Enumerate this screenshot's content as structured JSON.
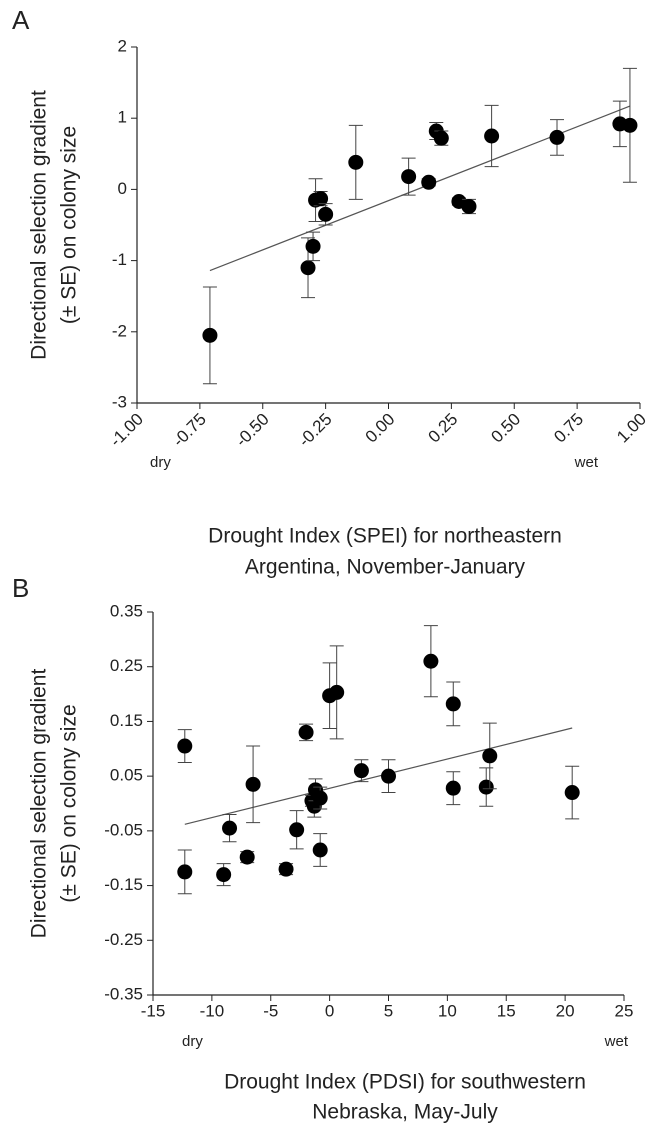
{
  "chart_data": [
    {
      "type": "scatter",
      "panel": "A",
      "ylabel": [
        "Directional selection gradient",
        "(± SE) on colony size"
      ],
      "xlabel": [
        "Drought Index (SPEI) for northeastern",
        "Argentina, November-January"
      ],
      "annotations": [
        "dry",
        "wet"
      ],
      "color": "#000000",
      "x": [
        -0.71,
        -0.32,
        -0.3,
        -0.29,
        -0.27,
        -0.25,
        -0.13,
        0.08,
        0.16,
        0.19,
        0.21,
        0.28,
        0.32,
        0.41,
        0.67,
        0.92,
        0.96
      ],
      "values": [
        -2.05,
        -1.1,
        -0.8,
        -0.15,
        -0.13,
        -0.35,
        0.38,
        0.18,
        0.1,
        0.82,
        0.72,
        -0.17,
        -0.24,
        0.75,
        0.73,
        0.92,
        0.9
      ],
      "errors": [
        0.68,
        0.42,
        0.2,
        0.3,
        0.1,
        0.15,
        0.52,
        0.26,
        0.05,
        0.12,
        0.1,
        0.05,
        0.1,
        0.43,
        0.25,
        0.32,
        0.8
      ],
      "trendline": {
        "x": [
          -0.71,
          0.96
        ],
        "y": [
          -1.14,
          1.17
        ]
      },
      "xlim": [
        -1,
        1
      ],
      "xticks": [
        {
          "value": -1,
          "label": "-1.00"
        },
        {
          "value": -0.75,
          "label": "-0.75"
        },
        {
          "value": -0.5,
          "label": "-0.50"
        },
        {
          "value": -0.25,
          "label": "-0.25"
        },
        {
          "value": 0,
          "label": "0.00"
        },
        {
          "value": 0.25,
          "label": "0.25"
        },
        {
          "value": 0.5,
          "label": "0.50"
        },
        {
          "value": 0.75,
          "label": "0.75"
        },
        {
          "value": 1,
          "label": "1.00"
        }
      ],
      "ylim": [
        -3,
        2
      ],
      "yticks": [
        -3,
        -2,
        -1,
        0,
        1,
        2
      ]
    },
    {
      "type": "scatter",
      "panel": "B",
      "ylabel": [
        "Directional selection gradient",
        "(± SE) on colony size"
      ],
      "xlabel": [
        "Drought Index (PDSI) for southwestern",
        "Nebraska, May-July"
      ],
      "annotations": [
        "dry",
        "wet"
      ],
      "color": "#000000",
      "x": [
        -12.3,
        -12.3,
        -9.0,
        -8.5,
        -7.0,
        -6.5,
        -3.7,
        -2.8,
        -2.0,
        -1.5,
        -1.3,
        -1.2,
        -0.8,
        -0.8,
        0.0,
        0.6,
        2.7,
        5.0,
        8.6,
        10.5,
        10.5,
        13.3,
        13.6,
        20.6
      ],
      "values": [
        0.105,
        -0.125,
        -0.13,
        -0.045,
        -0.098,
        0.035,
        -0.12,
        -0.048,
        0.13,
        0.005,
        -0.005,
        0.025,
        0.01,
        -0.085,
        0.197,
        0.203,
        0.06,
        0.05,
        0.26,
        0.182,
        0.028,
        0.03,
        0.087,
        0.02
      ],
      "errors": [
        0.03,
        0.04,
        0.02,
        0.025,
        0.01,
        0.07,
        0.01,
        0.035,
        0.015,
        0.01,
        0.02,
        0.02,
        0.02,
        0.03,
        0.06,
        0.085,
        0.02,
        0.03,
        0.065,
        0.04,
        0.03,
        0.035,
        0.06,
        0.048
      ],
      "trendline": {
        "x": [
          -12.3,
          20.6
        ],
        "y": [
          -0.038,
          0.138
        ]
      },
      "xlim": [
        -15,
        25
      ],
      "xticks": [
        -15,
        -10,
        -5,
        0,
        5,
        10,
        15,
        20,
        25
      ],
      "ylim": [
        -0.35,
        0.35
      ],
      "yticks": [
        -0.35,
        -0.25,
        -0.15,
        -0.05,
        0.05,
        0.15,
        0.25,
        0.35
      ]
    }
  ]
}
